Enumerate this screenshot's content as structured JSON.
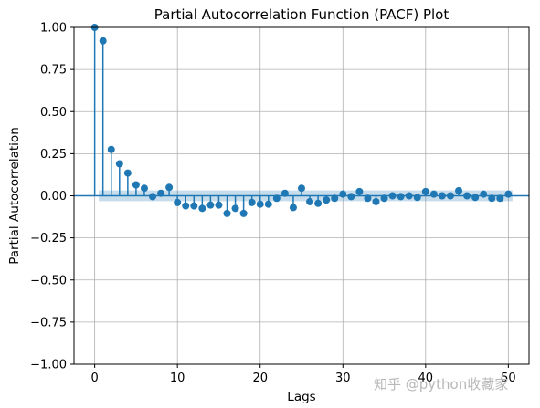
{
  "chart_data": {
    "type": "stem",
    "title": "Partial Autocorrelation Function (PACF) Plot",
    "xlabel": "Lags",
    "ylabel": "Partial Autocorrelation",
    "xlim": [
      -2.5,
      52.5
    ],
    "ylim": [
      -1.0,
      1.0
    ],
    "xticks": [
      0,
      10,
      20,
      30,
      40,
      50
    ],
    "xtick_labels": [
      "0",
      "10",
      "20",
      "30",
      "40",
      "50"
    ],
    "yticks": [
      -1.0,
      -0.75,
      -0.5,
      -0.25,
      0.0,
      0.25,
      0.5,
      0.75,
      1.0
    ],
    "ytick_labels": [
      "−1.00",
      "−0.75",
      "−0.50",
      "−0.25",
      "0.00",
      "0.25",
      "0.50",
      "0.75",
      "1.00"
    ],
    "grid": true,
    "lags": [
      0,
      1,
      2,
      3,
      4,
      5,
      6,
      7,
      8,
      9,
      10,
      11,
      12,
      13,
      14,
      15,
      16,
      17,
      18,
      19,
      20,
      21,
      22,
      23,
      24,
      25,
      26,
      27,
      28,
      29,
      30,
      31,
      32,
      33,
      34,
      35,
      36,
      37,
      38,
      39,
      40,
      41,
      42,
      43,
      44,
      45,
      46,
      47,
      48,
      49,
      50
    ],
    "values": [
      1.0,
      0.92,
      0.275,
      0.19,
      0.135,
      0.065,
      0.045,
      -0.005,
      0.015,
      0.05,
      -0.04,
      -0.06,
      -0.06,
      -0.075,
      -0.055,
      -0.055,
      -0.105,
      -0.075,
      -0.105,
      -0.04,
      -0.05,
      -0.05,
      -0.015,
      0.015,
      -0.07,
      0.045,
      -0.035,
      -0.045,
      -0.025,
      -0.015,
      0.01,
      -0.005,
      0.025,
      -0.015,
      -0.035,
      -0.015,
      0.0,
      -0.005,
      0.0,
      -0.01,
      0.025,
      0.01,
      0.0,
      0.0,
      0.03,
      0.0,
      -0.01,
      0.01,
      -0.015,
      -0.015,
      0.01
    ],
    "confidence_band": [
      -0.032,
      0.032
    ],
    "colors": {
      "stem": "#1f77b4",
      "band": "#1f77b4",
      "grid": "#b0b0b0",
      "zero_line": "#1f77b4"
    }
  },
  "watermark": {
    "text": "知乎 @python收藏家"
  }
}
